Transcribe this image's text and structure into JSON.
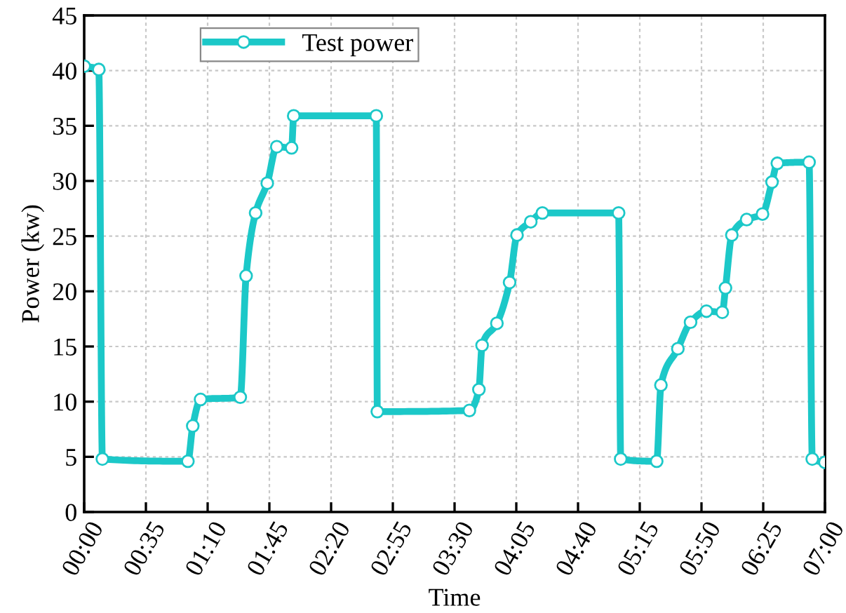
{
  "chart_data": {
    "type": "line",
    "xlabel": "Time",
    "ylabel": "Power (kw)",
    "x": [
      0,
      0.138,
      0.172,
      0.98,
      1.026,
      1.1,
      1.475,
      1.53,
      1.62,
      1.73,
      1.82,
      1.96,
      1.98,
      2.76,
      2.77,
      3.64,
      3.73,
      3.76,
      3.9,
      4.02,
      4.09,
      4.22,
      4.33,
      5.05,
      5.07,
      5.41,
      5.45,
      5.61,
      5.73,
      5.88,
      6.03,
      6.06,
      6.12,
      6.26,
      6.41,
      6.5,
      6.55,
      6.85,
      6.88,
      7.0
    ],
    "series": [
      {
        "name": "Test power",
        "color": "#1cc8c8",
        "values": [
          40.4,
          40.1,
          4.8,
          4.6,
          7.8,
          10.2,
          10.4,
          21.4,
          27.1,
          29.8,
          33.1,
          33.0,
          35.9,
          35.9,
          9.1,
          9.2,
          11.1,
          15.1,
          17.1,
          20.8,
          25.1,
          26.3,
          27.1,
          27.1,
          4.8,
          4.6,
          11.5,
          14.8,
          17.2,
          18.2,
          18.1,
          20.3,
          25.1,
          26.5,
          27.0,
          29.9,
          31.6,
          31.7,
          4.8,
          4.5
        ]
      }
    ],
    "xlim": [
      0,
      7
    ],
    "xticks": [
      {
        "value": 0,
        "label": "00:00"
      },
      {
        "value": 0.5833,
        "label": "00:35"
      },
      {
        "value": 1.1667,
        "label": "01:10"
      },
      {
        "value": 1.75,
        "label": "01:45"
      },
      {
        "value": 2.3333,
        "label": "02:20"
      },
      {
        "value": 2.9167,
        "label": "02:55"
      },
      {
        "value": 3.5,
        "label": "03:30"
      },
      {
        "value": 4.0833,
        "label": "04:05"
      },
      {
        "value": 4.6667,
        "label": "04:40"
      },
      {
        "value": 5.25,
        "label": "05:15"
      },
      {
        "value": 5.8333,
        "label": "05:50"
      },
      {
        "value": 6.4167,
        "label": "06:25"
      },
      {
        "value": 7,
        "label": "07:00"
      }
    ],
    "ylim": [
      0,
      45
    ],
    "yticks": [
      0,
      5,
      10,
      15,
      20,
      25,
      30,
      35,
      40,
      45
    ],
    "grid": true,
    "legend": "top left",
    "marker": "circle",
    "line_style": "solid"
  }
}
